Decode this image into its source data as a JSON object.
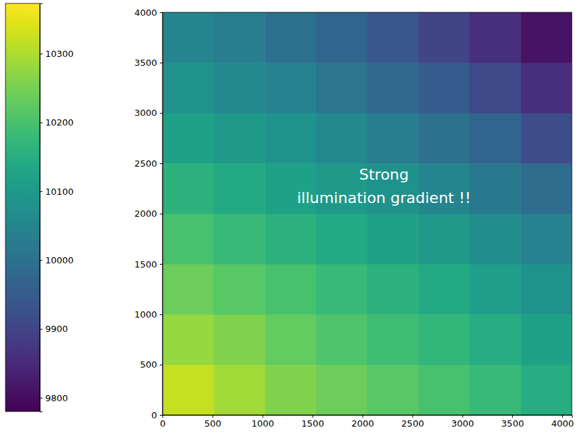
{
  "chart_data": {
    "type": "heatmap",
    "annotation": [
      "Strong",
      "illumination gradient !!"
    ],
    "xlim": [
      0,
      4096
    ],
    "ylim": [
      0,
      4000
    ],
    "xticks": [
      0,
      500,
      1000,
      1500,
      2000,
      2500,
      3000,
      3500,
      4000
    ],
    "yticks": [
      0,
      500,
      1000,
      1500,
      2000,
      2500,
      3000,
      3500,
      4000
    ],
    "x_edges": [
      0,
      512,
      1024,
      1536,
      2048,
      2560,
      3072,
      3584,
      4096
    ],
    "y_edges": [
      0,
      500,
      1000,
      1500,
      2000,
      2500,
      3000,
      3500,
      4000
    ],
    "cells": [
      [
        10320,
        10290,
        10260,
        10240,
        10220,
        10200,
        10180,
        10150
      ],
      [
        10280,
        10260,
        10230,
        10210,
        10190,
        10170,
        10150,
        10120
      ],
      [
        10240,
        10220,
        10200,
        10180,
        10160,
        10140,
        10110,
        10080
      ],
      [
        10200,
        10180,
        10160,
        10140,
        10120,
        10100,
        10070,
        10040
      ],
      [
        10160,
        10140,
        10120,
        10100,
        10080,
        10050,
        10020,
        9990
      ],
      [
        10120,
        10100,
        10080,
        10060,
        10030,
        10000,
        9970,
        9920
      ],
      [
        10080,
        10060,
        10040,
        10010,
        9980,
        9950,
        9910,
        9860
      ],
      [
        10050,
        10030,
        10000,
        9970,
        9940,
        9900,
        9860,
        9810
      ]
    ],
    "colorbar": {
      "range": [
        9780,
        10373
      ],
      "ticks": [
        9800,
        9900,
        10000,
        10100,
        10200,
        10300
      ]
    }
  }
}
